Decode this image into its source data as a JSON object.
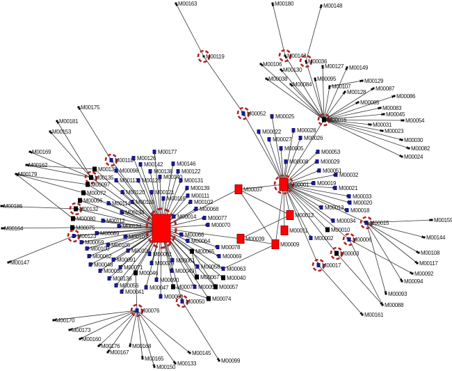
{
  "colors": {
    "hub": "#ff0000",
    "blue_node": "#1a1a8c",
    "black_node": "#000000",
    "ring": "#b22222",
    "edge": "#333333"
  },
  "central_hub": {
    "label": "",
    "kind": "hub",
    "ring": true
  },
  "nodes": [
    {
      "label": "M00001",
      "kind": "hub2",
      "ring": true
    },
    {
      "label": "M00016",
      "kind": "black",
      "ring": true
    },
    {
      "label": "M00037",
      "kind": "red",
      "ring": false
    },
    {
      "label": "M00039",
      "kind": "red",
      "ring": false
    },
    {
      "label": "M00012",
      "kind": "red",
      "ring": false
    },
    {
      "label": "M00011",
      "kind": "red",
      "ring": false
    },
    {
      "label": "M00009",
      "kind": "red",
      "ring": false
    },
    {
      "label": "M00153",
      "kind": "dot",
      "ring": false
    },
    {
      "label": "M00169",
      "kind": "dot",
      "ring": false
    },
    {
      "label": "M00162",
      "kind": "dot",
      "ring": false
    },
    {
      "label": "M00179",
      "kind": "dot",
      "ring": false
    },
    {
      "label": "M00186",
      "kind": "dot",
      "ring": false
    },
    {
      "label": "M00164",
      "kind": "dot",
      "ring": false
    },
    {
      "label": "M00147",
      "kind": "dot",
      "ring": false
    },
    {
      "label": "M00175",
      "kind": "dot",
      "ring": false
    },
    {
      "label": "M00181",
      "kind": "dot",
      "ring": false
    },
    {
      "label": "M00118",
      "kind": "blue",
      "ring": true
    },
    {
      "label": "M00137",
      "kind": "black",
      "ring": false
    },
    {
      "label": "M00135",
      "kind": "black",
      "ring": true
    },
    {
      "label": "M00097",
      "kind": "black",
      "ring": false
    },
    {
      "label": "M00072",
      "kind": "black",
      "ring": false
    },
    {
      "label": "M00096",
      "kind": "black",
      "ring": false
    },
    {
      "label": "M00132",
      "kind": "black",
      "ring": true
    },
    {
      "label": "M00080",
      "kind": "black",
      "ring": false
    },
    {
      "label": "M00075",
      "kind": "black",
      "ring": false
    },
    {
      "label": "M00123",
      "kind": "blue",
      "ring": true
    },
    {
      "label": "M00126",
      "kind": "blue",
      "ring": false
    },
    {
      "label": "M00098",
      "kind": "blue",
      "ring": false
    },
    {
      "label": "M00113",
      "kind": "blue",
      "ring": false
    },
    {
      "label": "M00120",
      "kind": "blue",
      "ring": false
    },
    {
      "label": "M00110",
      "kind": "blue",
      "ring": false
    },
    {
      "label": "M00114",
      "kind": "blue",
      "ring": false
    },
    {
      "label": "M00134",
      "kind": "blue",
      "ring": false
    },
    {
      "label": "M00112",
      "kind": "blue",
      "ring": false
    },
    {
      "label": "M00124",
      "kind": "blue",
      "ring": false
    },
    {
      "label": "M00089",
      "kind": "blue",
      "ring": false
    },
    {
      "label": "M00103",
      "kind": "blue",
      "ring": false
    },
    {
      "label": "M00059",
      "kind": "blue",
      "ring": false
    },
    {
      "label": "M00105",
      "kind": "blue",
      "ring": false
    },
    {
      "label": "M00100",
      "kind": "blue",
      "ring": false
    },
    {
      "label": "M00104",
      "kind": "blue",
      "ring": false
    },
    {
      "label": "M00062",
      "kind": "blue",
      "ring": false
    },
    {
      "label": "M00091",
      "kind": "blue",
      "ring": false
    },
    {
      "label": "M00048",
      "kind": "blue",
      "ring": false
    },
    {
      "label": "M00071",
      "kind": "blue",
      "ring": false
    },
    {
      "label": "M00035",
      "kind": "blue",
      "ring": false
    },
    {
      "label": "M00136",
      "kind": "blue",
      "ring": false
    },
    {
      "label": "M00056",
      "kind": "blue",
      "ring": false
    },
    {
      "label": "M00041",
      "kind": "blue",
      "ring": false
    },
    {
      "label": "M00046",
      "kind": "black",
      "ring": false
    },
    {
      "label": "M00047",
      "kind": "blue",
      "ring": false
    },
    {
      "label": "M00079",
      "kind": "blue",
      "ring": false
    },
    {
      "label": "M00081",
      "kind": "blue",
      "ring": false
    },
    {
      "label": "M00090",
      "kind": "blue",
      "ring": false
    },
    {
      "label": "M00061",
      "kind": "blue",
      "ring": false
    },
    {
      "label": "M00049",
      "kind": "blue",
      "ring": false
    },
    {
      "label": "M00073",
      "kind": "black",
      "ring": false
    },
    {
      "label": "M00060",
      "kind": "blue",
      "ring": false
    },
    {
      "label": "M00050",
      "kind": "blue",
      "ring": true
    },
    {
      "label": "M00076",
      "kind": "blue",
      "ring": true
    },
    {
      "label": "M00142",
      "kind": "blue",
      "ring": false
    },
    {
      "label": "M00138",
      "kind": "blue",
      "ring": false
    },
    {
      "label": "M00125",
      "kind": "blue",
      "ring": false
    },
    {
      "label": "M00140",
      "kind": "blue",
      "ring": false
    },
    {
      "label": "M00121",
      "kind": "blue",
      "ring": false
    },
    {
      "label": "M00116",
      "kind": "blue",
      "ring": false
    },
    {
      "label": "M00177",
      "kind": "blue",
      "ring": false
    },
    {
      "label": "M00146",
      "kind": "blue",
      "ring": false
    },
    {
      "label": "M00122",
      "kind": "blue",
      "ring": false
    },
    {
      "label": "M00131",
      "kind": "blue",
      "ring": false
    },
    {
      "label": "M00139",
      "kind": "blue",
      "ring": false
    },
    {
      "label": "M00111",
      "kind": "blue",
      "ring": false
    },
    {
      "label": "M00102",
      "kind": "blue",
      "ring": false
    },
    {
      "label": "M00068",
      "kind": "blue",
      "ring": false
    },
    {
      "label": "M00014",
      "kind": "blue",
      "ring": false
    },
    {
      "label": "M00077",
      "kind": "blue",
      "ring": false
    },
    {
      "label": "M00070",
      "kind": "blue",
      "ring": false
    },
    {
      "label": "M00066",
      "kind": "blue",
      "ring": false
    },
    {
      "label": "M00064",
      "kind": "blue",
      "ring": false
    },
    {
      "label": "M00065",
      "kind": "black",
      "ring": false
    },
    {
      "label": "M00078",
      "kind": "blue",
      "ring": false
    },
    {
      "label": "M00069",
      "kind": "blue",
      "ring": false
    },
    {
      "label": "M00058",
      "kind": "blue",
      "ring": false
    },
    {
      "label": "M00063",
      "kind": "blue",
      "ring": false
    },
    {
      "label": "M00067",
      "kind": "black",
      "ring": false
    },
    {
      "label": "M00040",
      "kind": "black",
      "ring": false
    },
    {
      "label": "M00055",
      "kind": "blue",
      "ring": false
    },
    {
      "label": "M00057",
      "kind": "black",
      "ring": false
    },
    {
      "label": "M00074",
      "kind": "black",
      "ring": false
    },
    {
      "label": "M00170",
      "kind": "dot",
      "ring": false
    },
    {
      "label": "M00173",
      "kind": "dot",
      "ring": false
    },
    {
      "label": "M00160",
      "kind": "dot",
      "ring": false
    },
    {
      "label": "M00176",
      "kind": "dot",
      "ring": false
    },
    {
      "label": "M00167",
      "kind": "dot",
      "ring": false
    },
    {
      "label": "M00168",
      "kind": "dot",
      "ring": false
    },
    {
      "label": "M00165",
      "kind": "dot",
      "ring": false
    },
    {
      "label": "M00150",
      "kind": "dot",
      "ring": false
    },
    {
      "label": "M00133",
      "kind": "dot",
      "ring": false
    },
    {
      "label": "M00145",
      "kind": "dot",
      "ring": false
    },
    {
      "label": "M00099",
      "kind": "dot",
      "ring": false
    },
    {
      "label": "M00180",
      "kind": "dot",
      "ring": false
    },
    {
      "label": "M00148",
      "kind": "dot",
      "ring": false
    },
    {
      "label": "M00143",
      "kind": "dot",
      "ring": true
    },
    {
      "label": "M00036",
      "kind": "dot",
      "ring": true
    },
    {
      "label": "M00106",
      "kind": "dot",
      "ring": false
    },
    {
      "label": "M00130",
      "kind": "dot",
      "ring": false
    },
    {
      "label": "M00127",
      "kind": "dot",
      "ring": false
    },
    {
      "label": "M00149",
      "kind": "dot",
      "ring": false
    },
    {
      "label": "M00038",
      "kind": "dot",
      "ring": false
    },
    {
      "label": "M00084",
      "kind": "dot",
      "ring": false
    },
    {
      "label": "M00095",
      "kind": "dot",
      "ring": false
    },
    {
      "label": "M00107",
      "kind": "dot",
      "ring": false
    },
    {
      "label": "M00129",
      "kind": "dot",
      "ring": false
    },
    {
      "label": "M00128",
      "kind": "dot",
      "ring": false
    },
    {
      "label": "M00087",
      "kind": "dot",
      "ring": false
    },
    {
      "label": "M00086",
      "kind": "dot",
      "ring": false
    },
    {
      "label": "M00085",
      "kind": "dot",
      "ring": false
    },
    {
      "label": "M00083",
      "kind": "dot",
      "ring": false
    },
    {
      "label": "M00045",
      "kind": "dot",
      "ring": false
    },
    {
      "label": "M00054",
      "kind": "dot",
      "ring": false
    },
    {
      "label": "M00031",
      "kind": "dot",
      "ring": false
    },
    {
      "label": "M00023",
      "kind": "dot",
      "ring": false
    },
    {
      "label": "M00030",
      "kind": "dot",
      "ring": false
    },
    {
      "label": "M00082",
      "kind": "dot",
      "ring": false
    },
    {
      "label": "M00024",
      "kind": "dot",
      "ring": false
    },
    {
      "label": "M00052",
      "kind": "blue",
      "ring": true
    },
    {
      "label": "M00119",
      "kind": "dot",
      "ring": true
    },
    {
      "label": "M00163",
      "kind": "dot",
      "ring": false
    },
    {
      "label": "M00025",
      "kind": "blue",
      "ring": false
    },
    {
      "label": "M00022",
      "kind": "blue",
      "ring": false
    },
    {
      "label": "M00027",
      "kind": "blue",
      "ring": false
    },
    {
      "label": "M00005",
      "kind": "blue",
      "ring": false
    },
    {
      "label": "M00028",
      "kind": "blue",
      "ring": false
    },
    {
      "label": "M00026",
      "kind": "blue",
      "ring": false
    },
    {
      "label": "M00008",
      "kind": "blue",
      "ring": false
    },
    {
      "label": "M00053",
      "kind": "blue",
      "ring": false
    },
    {
      "label": "M00029",
      "kind": "blue",
      "ring": false
    },
    {
      "label": "M00051",
      "kind": "blue",
      "ring": false
    },
    {
      "label": "M00032",
      "kind": "blue",
      "ring": false
    },
    {
      "label": "M00019",
      "kind": "blue",
      "ring": false
    },
    {
      "label": "M00021",
      "kind": "blue",
      "ring": false
    },
    {
      "label": "M00033",
      "kind": "blue",
      "ring": false
    },
    {
      "label": "M00020",
      "kind": "blue",
      "ring": false
    },
    {
      "label": "M00013",
      "kind": "blue",
      "ring": false
    },
    {
      "label": "M00018",
      "kind": "blue",
      "ring": false
    },
    {
      "label": "M00034",
      "kind": "blue",
      "ring": false
    },
    {
      "label": "M00015",
      "kind": "blue",
      "ring": true
    },
    {
      "label": "M00159",
      "kind": "dot",
      "ring": false
    },
    {
      "label": "M00010",
      "kind": "black",
      "ring": false
    },
    {
      "label": "M00002",
      "kind": "blue",
      "ring": false
    },
    {
      "label": "M00006",
      "kind": "blue",
      "ring": true
    },
    {
      "label": "M00144",
      "kind": "dot",
      "ring": false
    },
    {
      "label": "M00003",
      "kind": "black",
      "ring": true
    },
    {
      "label": "M00108",
      "kind": "dot",
      "ring": false
    },
    {
      "label": "M00117",
      "kind": "dot",
      "ring": false
    },
    {
      "label": "M00017",
      "kind": "blue",
      "ring": true
    },
    {
      "label": "M00092",
      "kind": "dot",
      "ring": false
    },
    {
      "label": "M00094",
      "kind": "dot",
      "ring": false
    },
    {
      "label": "M00093",
      "kind": "dot",
      "ring": false
    },
    {
      "label": "M00088",
      "kind": "dot",
      "ring": false
    },
    {
      "label": "M00161",
      "kind": "dot",
      "ring": false
    }
  ],
  "central_hub_links": [
    "M00118",
    "M00137",
    "M00135",
    "M00097",
    "M00072",
    "M00096",
    "M00132",
    "M00080",
    "M00075",
    "M00123",
    "M00126",
    "M00098",
    "M00113",
    "M00120",
    "M00110",
    "M00114",
    "M00134",
    "M00112",
    "M00124",
    "M00089",
    "M00103",
    "M00059",
    "M00105",
    "M00100",
    "M00104",
    "M00062",
    "M00091",
    "M00048",
    "M00071",
    "M00035",
    "M00136",
    "M00056",
    "M00041",
    "M00046",
    "M00047",
    "M00079",
    "M00081",
    "M00090",
    "M00061",
    "M00049",
    "M00073",
    "M00060",
    "M00050",
    "M00142",
    "M00138",
    "M00125",
    "M00140",
    "M00121",
    "M00116",
    "M00177",
    "M00146",
    "M00122",
    "M00131",
    "M00139",
    "M00111",
    "M00102",
    "M00068",
    "M00014",
    "M00077",
    "M00070",
    "M00066",
    "M00064",
    "M00065",
    "M00078",
    "M00069",
    "M00058",
    "M00063",
    "M00067",
    "M00040",
    "M00055",
    "M00057",
    "M00074",
    "M00037",
    "M00039"
  ],
  "edge_groups": [
    {
      "source": "M00001",
      "targets": [
        "M00052",
        "M00025",
        "M00022",
        "M00027",
        "M00005",
        "M00028",
        "M00026",
        "M00008",
        "M00053",
        "M00029",
        "M00051",
        "M00032",
        "M00019",
        "M00021",
        "M00033",
        "M00020",
        "M00013",
        "M00018",
        "M00034",
        "M00015",
        "M00010",
        "M00002",
        "M00006",
        "M00003",
        "M00017",
        "M00012",
        "M00011",
        "M00009",
        "M00037",
        "M00016"
      ]
    },
    {
      "source": "M00016",
      "targets": [
        "M00143",
        "M00036",
        "M00106",
        "M00130",
        "M00127",
        "M00149",
        "M00038",
        "M00084",
        "M00095",
        "M00107",
        "M00128",
        "M00087",
        "M00086",
        "M00085",
        "M00083",
        "M00045",
        "M00054",
        "M00031",
        "M00023",
        "M00030",
        "M00082",
        "M00024"
      ]
    },
    {
      "source": "M00143",
      "targets": [
        "M00180"
      ]
    },
    {
      "source": "M00036",
      "targets": [
        "M00148"
      ]
    },
    {
      "source": "M00107",
      "targets": [
        "M00129"
      ]
    },
    {
      "source": "M00119",
      "targets": [
        "M00163",
        "M00052"
      ]
    },
    {
      "source": "M00037",
      "targets": [
        "M00012",
        "M00009"
      ]
    },
    {
      "source": "M00039",
      "targets": [
        "M00012",
        "M00009"
      ]
    },
    {
      "source": "M00063",
      "targets": [
        "M00009"
      ]
    },
    {
      "source": "M00015",
      "targets": [
        "M00159",
        "M00144",
        "M00108",
        "M00117",
        "M00093",
        "M00094"
      ]
    },
    {
      "source": "M00006",
      "targets": [
        "M00092",
        "M00088"
      ]
    },
    {
      "source": "M00003",
      "targets": [
        "M00088"
      ]
    },
    {
      "source": "M00017",
      "targets": [
        "M00161"
      ]
    },
    {
      "source": "M00076",
      "targets": [
        "M00170",
        "M00173",
        "M00160",
        "M00176",
        "M00167",
        "M00168",
        "M00165",
        "M00150",
        "M00133",
        "M00145",
        "M00046"
      ]
    },
    {
      "source": "M00050",
      "targets": [
        "M00099"
      ]
    },
    {
      "source": "M00073",
      "targets": [
        "M00074"
      ]
    },
    {
      "source": "M00065",
      "targets": [
        "M00067",
        "M00057"
      ]
    },
    {
      "source": "M00135",
      "targets": [
        "M00153",
        "M00169",
        "M00162",
        "M00181"
      ]
    },
    {
      "source": "M00137",
      "targets": [
        "M00162"
      ]
    },
    {
      "source": "M00097",
      "targets": [
        "M00179"
      ]
    },
    {
      "source": "M00072",
      "targets": [
        "M00179"
      ]
    },
    {
      "source": "M00080",
      "targets": [
        "M00179"
      ]
    },
    {
      "source": "M00132",
      "targets": [
        "M00186"
      ]
    },
    {
      "source": "M00075",
      "targets": [
        "M00164"
      ]
    },
    {
      "source": "M00123",
      "targets": [
        "M00147"
      ]
    },
    {
      "source": "M00118",
      "targets": [
        "M00175"
      ]
    }
  ]
}
